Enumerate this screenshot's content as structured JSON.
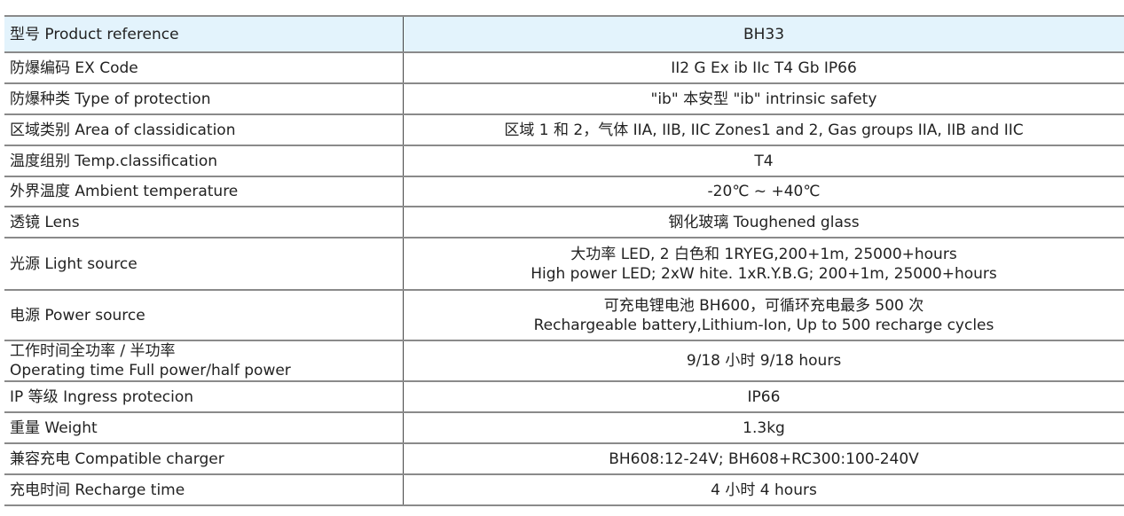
{
  "rows": [
    {
      "label": "型号  Product reference",
      "value": [
        "BH33"
      ]
    },
    {
      "label": "防爆编码 EX Code",
      "value": [
        "II2 G Ex ib IIc  T4  Gb  IP66"
      ]
    },
    {
      "label": "防爆种类 Type of protection",
      "value": [
        "\"ib\" 本安型    \"ib\" intrinsic safety"
      ]
    },
    {
      "label": "区域类别 Area of classidication",
      "value": [
        "区域 1 和 2，气体 IIA, IIB, IIC  Zones1 and 2, Gas groups IIA, IIB and IIC"
      ]
    },
    {
      "label": "温度组别 Temp.classification",
      "value": [
        "T4"
      ]
    },
    {
      "label": "外界温度 Ambient temperature",
      "value": [
        "-20℃ ~ +40℃"
      ]
    },
    {
      "label": "透镜 Lens",
      "value": [
        "钢化玻璃 Toughened glass"
      ]
    },
    {
      "label": "光源 Light source",
      "value": [
        "大功率 LED, 2 白色和 1RYEG,200+1m, 25000+hours",
        "High power LED; 2xW hite. 1xR.Y.B.G; 200+1m, 25000+hours"
      ]
    },
    {
      "label": "电源 Power source",
      "value": [
        "可充电锂电池 BH600，可循环充电最多 500 次",
        "Rechargeable battery,Lithium-Ion, Up to 500 recharge cycles"
      ]
    },
    {
      "label": [
        "工作时间全功率 / 半功率",
        "Operating time Full power/half power"
      ],
      "value": [
        "9/18 小时  9/18 hours"
      ]
    },
    {
      "label": "IP 等级  Ingress protecion",
      "value": [
        "IP66"
      ]
    },
    {
      "label": "重量 Weight",
      "value": [
        "1.3kg"
      ]
    },
    {
      "label": "兼容充电 Compatible charger",
      "value": [
        "BH608:12-24V; BH608+RC300:100-240V"
      ]
    },
    {
      "label": "充电时间 Recharge time",
      "value": [
        "4 小时   4 hours"
      ]
    }
  ]
}
